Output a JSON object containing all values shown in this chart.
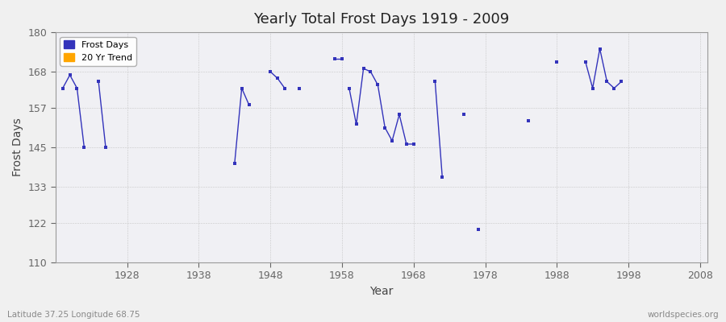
{
  "title": "Yearly Total Frost Days 1919 - 2009",
  "xlabel": "Year",
  "ylabel": "Frost Days",
  "subtitle_left": "Latitude 37.25 Longitude 68.75",
  "subtitle_right": "worldspecies.org",
  "ylim": [
    110,
    180
  ],
  "xlim": [
    1918,
    2009
  ],
  "yticks": [
    110,
    122,
    133,
    145,
    157,
    168,
    180
  ],
  "xticks": [
    1928,
    1938,
    1948,
    1958,
    1968,
    1978,
    1988,
    1998,
    2008
  ],
  "background_color": "#f0f0f0",
  "plot_bg_color": "#f0f0f4",
  "line_color": "#3333bb",
  "trend_color": "#ffa500",
  "segments": [
    {
      "years": [
        1919,
        1920,
        1921,
        1922
      ],
      "values": [
        163,
        167,
        163,
        145
      ]
    },
    {
      "years": [
        1924,
        1925
      ],
      "values": [
        165,
        145
      ]
    },
    {
      "years": [
        1943,
        1944,
        1945
      ],
      "values": [
        140,
        163,
        158
      ]
    },
    {
      "years": [
        1948,
        1949,
        1950
      ],
      "values": [
        168,
        166,
        163
      ]
    },
    {
      "years": [
        1952
      ],
      "values": [
        163
      ]
    },
    {
      "years": [
        1957,
        1958
      ],
      "values": [
        172,
        172
      ]
    },
    {
      "years": [
        1959,
        1960,
        1961,
        1962,
        1963,
        1964,
        1965,
        1966,
        1967,
        1968
      ],
      "values": [
        163,
        152,
        169,
        168,
        164,
        151,
        147,
        155,
        146,
        146
      ]
    },
    {
      "years": [
        1971,
        1972
      ],
      "values": [
        165,
        136
      ]
    },
    {
      "years": [
        1975
      ],
      "values": [
        155
      ]
    },
    {
      "years": [
        1977
      ],
      "values": [
        120
      ]
    },
    {
      "years": [
        1984
      ],
      "values": [
        153
      ]
    },
    {
      "years": [
        1988
      ],
      "values": [
        171
      ]
    },
    {
      "years": [
        1992,
        1993,
        1994,
        1995,
        1996,
        1997
      ],
      "values": [
        171,
        163,
        175,
        165,
        163,
        165
      ]
    }
  ]
}
